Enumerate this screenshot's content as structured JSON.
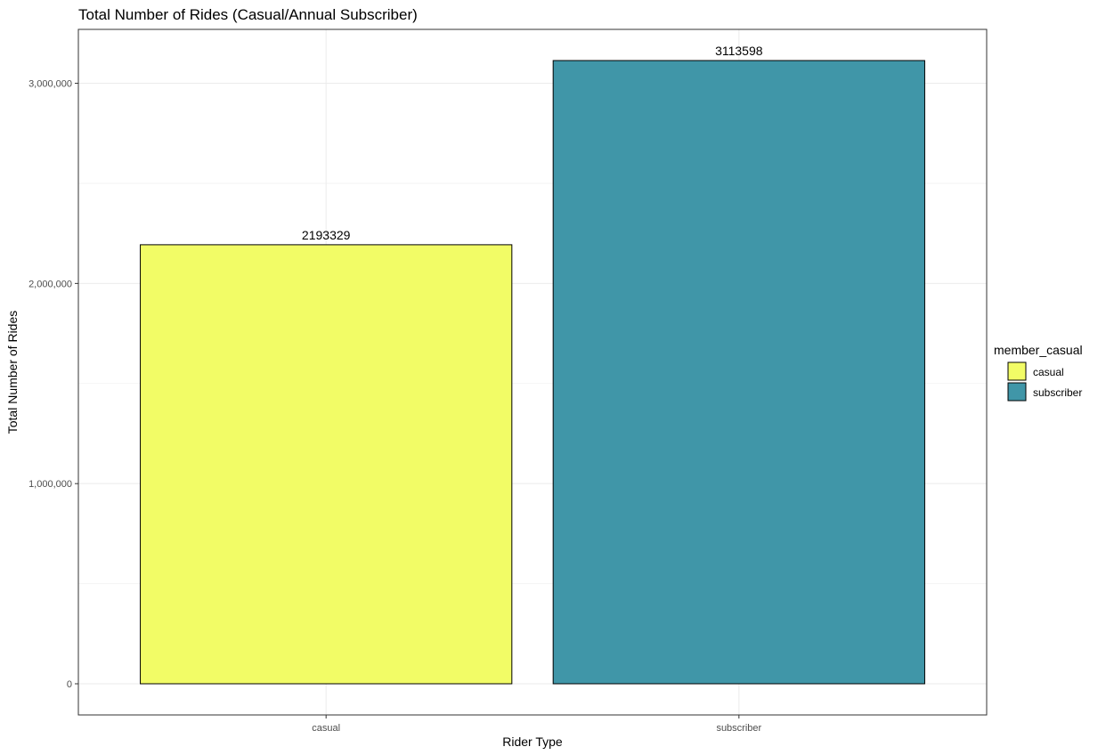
{
  "chart_data": {
    "type": "bar",
    "title": "Total Number of Rides (Casual/Annual Subscriber)",
    "xlabel": "Rider Type",
    "ylabel": "Total Number of Rides",
    "categories": [
      "casual",
      "subscriber"
    ],
    "values": [
      2193329,
      3113598
    ],
    "data_labels": [
      "2193329",
      "3113598"
    ],
    "colors": [
      "#f2fc66",
      "#4096a8"
    ],
    "ylim": [
      -155680,
      3269278
    ],
    "yticks": [
      0,
      1000000,
      2000000,
      3000000
    ],
    "ytick_labels": [
      "0",
      "1,000,000",
      "2,000,000",
      "3,000,000"
    ],
    "grid": true,
    "legend": {
      "title": "member_casual",
      "position": "right",
      "entries": [
        {
          "label": "casual",
          "color": "#f2fc66"
        },
        {
          "label": "subscriber",
          "color": "#4096a8"
        }
      ]
    }
  }
}
